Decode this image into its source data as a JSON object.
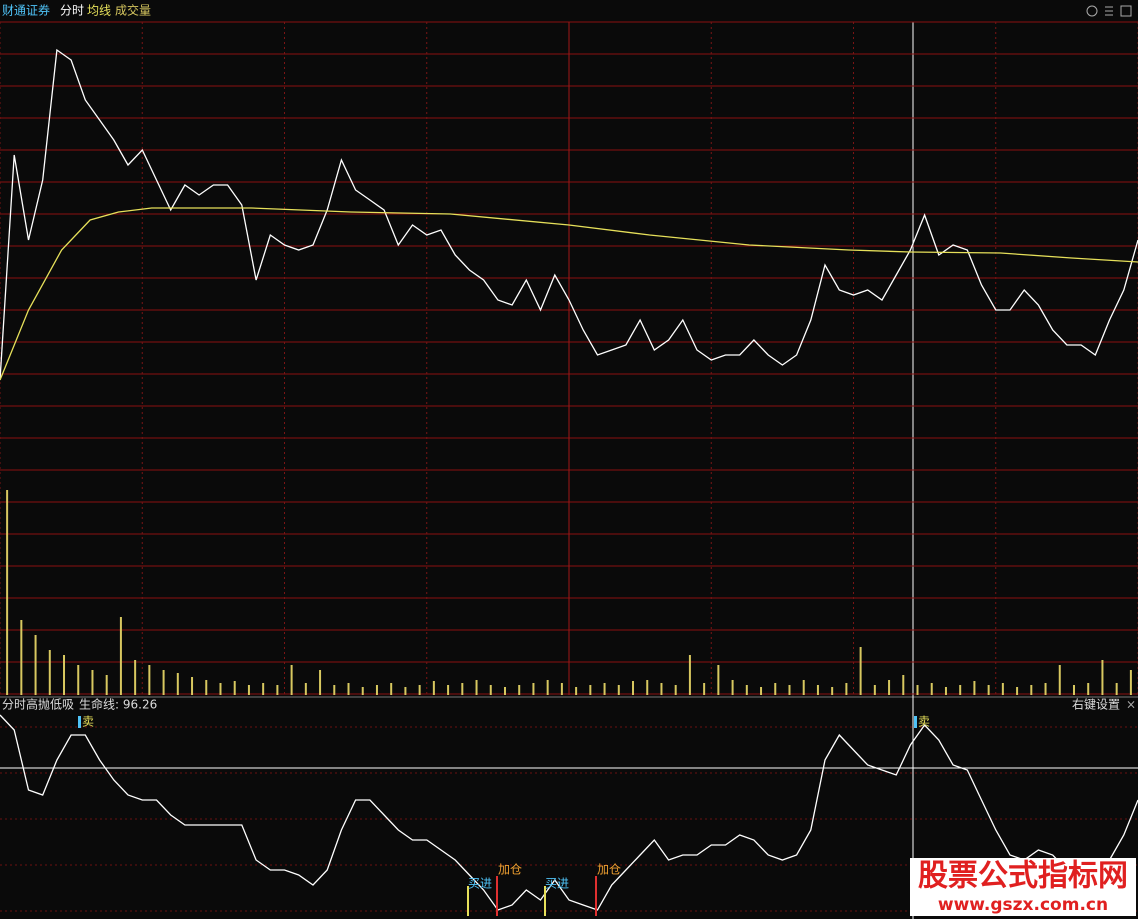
{
  "header": {
    "broker": "财通证券",
    "mode": "分时",
    "avg": "均线",
    "volume": "成交量"
  },
  "indicator_header": {
    "name": "分时高抛低吸",
    "life_line": "生命线: 96.26",
    "settings": "右键设置"
  },
  "signals": {
    "sell": [
      "卖",
      "卖"
    ],
    "buy": [
      "买进",
      "买进"
    ],
    "add": [
      "加仓",
      "加仓"
    ]
  },
  "watermark": {
    "title": "股票公式指标网",
    "url": "www.gszx.com.cn"
  },
  "chart_data": [
    {
      "type": "line",
      "xlim": [
        0,
        240
      ],
      "ylim": [
        0,
        448
      ],
      "xticks": [
        0,
        30,
        60,
        90,
        120,
        150,
        180,
        210,
        240
      ],
      "series": [
        {
          "name": "分时",
          "color": "#ffffff",
          "values": [
            90,
            315,
            230,
            290,
            420,
            410,
            370,
            350,
            330,
            305,
            320,
            290,
            260,
            285,
            275,
            285,
            285,
            265,
            190,
            235,
            225,
            220,
            225,
            260,
            310,
            280,
            270,
            260,
            225,
            245,
            235,
            240,
            215,
            200,
            190,
            170,
            165,
            190,
            160,
            195,
            170,
            140,
            115,
            120,
            125,
            150,
            120,
            130,
            150,
            120,
            110,
            115,
            115,
            130,
            115,
            105,
            115,
            150,
            205,
            180,
            175,
            180,
            170,
            195,
            220,
            255,
            215,
            225,
            220,
            185,
            160,
            160,
            180,
            165,
            140,
            125,
            125,
            115,
            150,
            180,
            230
          ]
        },
        {
          "name": "均线",
          "color": "#e6e05a",
          "x": [
            0,
            6,
            13,
            19,
            25,
            32,
            53,
            74,
            95,
            120,
            137,
            158,
            179,
            192,
            211,
            226,
            240
          ],
          "values": [
            90,
            160,
            220,
            250,
            258,
            262,
            262,
            258,
            256,
            245,
            235,
            225,
            220,
            218,
            217,
            212,
            208
          ]
        }
      ]
    },
    {
      "type": "bar",
      "xlim": [
        0,
        240
      ],
      "ylim": [
        0,
        210
      ],
      "color": "#d8c860",
      "values": [
        205,
        75,
        60,
        45,
        40,
        30,
        25,
        20,
        78,
        35,
        30,
        25,
        22,
        18,
        15,
        12,
        14,
        10,
        12,
        10,
        30,
        12,
        25,
        10,
        12,
        8,
        10,
        12,
        8,
        10,
        14,
        10,
        12,
        15,
        10,
        8,
        10,
        12,
        15,
        12,
        8,
        10,
        12,
        10,
        14,
        15,
        12,
        10,
        40,
        12,
        30,
        15,
        10,
        8,
        12,
        10,
        15,
        10,
        8,
        12,
        48,
        10,
        15,
        20,
        10,
        12,
        8,
        10,
        14,
        10,
        12,
        8,
        10,
        12,
        30,
        10,
        12,
        35,
        12,
        25
      ]
    },
    {
      "type": "line",
      "xlim": [
        0,
        240
      ],
      "ylim": [
        0,
        219
      ],
      "series": [
        {
          "name": "分时高抛低吸",
          "color": "#ffffff",
          "values": [
            204,
            189,
            129,
            124,
            159,
            184,
            184,
            159,
            139,
            124,
            119,
            119,
            104,
            94,
            94,
            94,
            94,
            94,
            59,
            49,
            49,
            44,
            34,
            49,
            89,
            119,
            119,
            104,
            89,
            79,
            79,
            69,
            59,
            44,
            29,
            9,
            14,
            29,
            19,
            39,
            19,
            14,
            9,
            34,
            49,
            64,
            79,
            59,
            64,
            64,
            74,
            74,
            84,
            79,
            64,
            59,
            64,
            89,
            159,
            184,
            169,
            154,
            149,
            144,
            174,
            194,
            179,
            154,
            149,
            119,
            89,
            64,
            59,
            69,
            64,
            49,
            44,
            49,
            59,
            84,
            119
          ]
        }
      ]
    }
  ]
}
